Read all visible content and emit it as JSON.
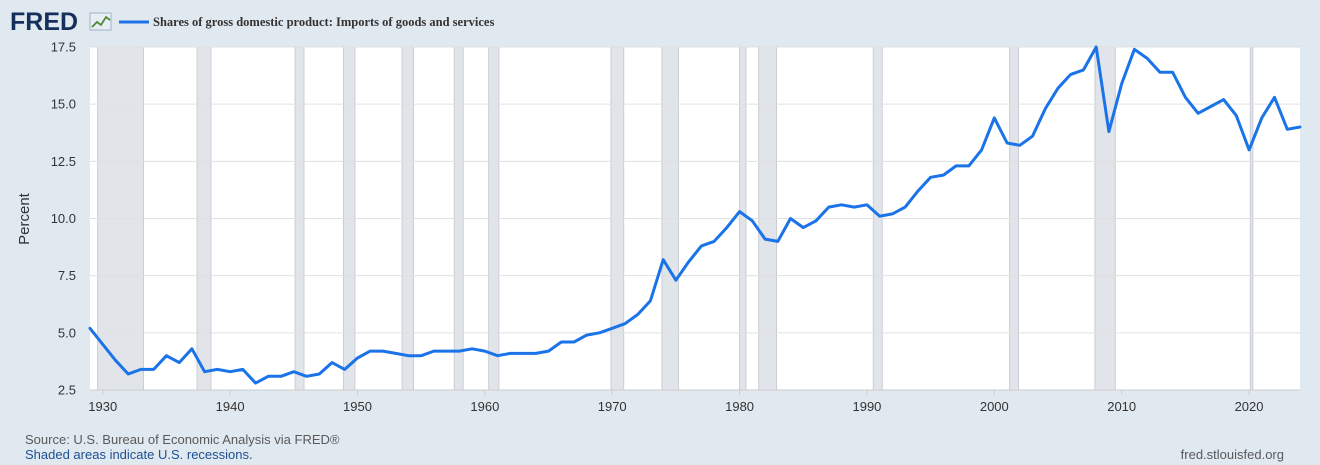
{
  "logo": {
    "text": "FRED",
    "icon": "line-chart-icon"
  },
  "series_color": "#1a73e8",
  "recession_color": "#e1e5ea",
  "footer": {
    "source": "Source: U.S. Bureau of Economic Analysis via FRED®",
    "recession_note": "Shaded areas indicate U.S. recessions.",
    "url": "fred.stlouisfed.org"
  },
  "chart_data": {
    "type": "line",
    "title": "",
    "xlabel": "",
    "ylabel": "Percent",
    "xlim": [
      1929,
      2024
    ],
    "ylim": [
      2.5,
      17.5
    ],
    "x_ticks": [
      1930,
      1940,
      1950,
      1960,
      1970,
      1980,
      1990,
      2000,
      2010,
      2020
    ],
    "y_ticks": [
      {
        "value": 2.5,
        "label": "2.5"
      },
      {
        "value": 5.0,
        "label": "5.0"
      },
      {
        "value": 7.5,
        "label": "7.5"
      },
      {
        "value": 10.0,
        "label": "10.0"
      },
      {
        "value": 12.5,
        "label": "12.5"
      },
      {
        "value": 15.0,
        "label": "15.0"
      },
      {
        "value": 17.5,
        "label": "17.5"
      }
    ],
    "grid": true,
    "legend_position": "top-left",
    "recessions": [
      [
        1929.6,
        1933.2
      ],
      [
        1937.4,
        1938.5
      ],
      [
        1945.1,
        1945.8
      ],
      [
        1948.9,
        1949.8
      ],
      [
        1953.5,
        1954.4
      ],
      [
        1957.6,
        1958.3
      ],
      [
        1960.3,
        1961.1
      ],
      [
        1969.9,
        1970.9
      ],
      [
        1973.9,
        1975.2
      ],
      [
        1980.0,
        1980.5
      ],
      [
        1981.5,
        1982.9
      ],
      [
        1990.5,
        1991.2
      ],
      [
        2001.2,
        2001.9
      ],
      [
        2007.9,
        2009.5
      ],
      [
        2020.1,
        2020.3
      ]
    ],
    "series": [
      {
        "name": "Shares of gross domestic product: Imports of goods and services",
        "x": [
          1929,
          1930,
          1931,
          1932,
          1933,
          1934,
          1935,
          1936,
          1937,
          1938,
          1939,
          1940,
          1941,
          1942,
          1943,
          1944,
          1945,
          1946,
          1947,
          1948,
          1949,
          1950,
          1951,
          1952,
          1953,
          1954,
          1955,
          1956,
          1957,
          1958,
          1959,
          1960,
          1961,
          1962,
          1963,
          1964,
          1965,
          1966,
          1967,
          1968,
          1969,
          1970,
          1971,
          1972,
          1973,
          1974,
          1975,
          1976,
          1977,
          1978,
          1979,
          1980,
          1981,
          1982,
          1983,
          1984,
          1985,
          1986,
          1987,
          1988,
          1989,
          1990,
          1991,
          1992,
          1993,
          1994,
          1995,
          1996,
          1997,
          1998,
          1999,
          2000,
          2001,
          2002,
          2003,
          2004,
          2005,
          2006,
          2007,
          2008,
          2009,
          2010,
          2011,
          2012,
          2013,
          2014,
          2015,
          2016,
          2017,
          2018,
          2019,
          2020,
          2021,
          2022,
          2023,
          2024
        ],
        "y": [
          5.2,
          4.5,
          3.8,
          3.2,
          3.4,
          3.4,
          4.0,
          3.7,
          4.3,
          3.3,
          3.4,
          3.3,
          3.4,
          2.8,
          3.1,
          3.1,
          3.3,
          3.1,
          3.2,
          3.7,
          3.4,
          3.9,
          4.2,
          4.2,
          4.1,
          4.0,
          4.0,
          4.2,
          4.2,
          4.2,
          4.3,
          4.2,
          4.0,
          4.1,
          4.1,
          4.1,
          4.2,
          4.6,
          4.6,
          4.9,
          5.0,
          5.2,
          5.4,
          5.8,
          6.4,
          8.2,
          7.3,
          8.1,
          8.8,
          9.0,
          9.6,
          10.3,
          9.9,
          9.1,
          9.0,
          10.0,
          9.6,
          9.9,
          10.5,
          10.6,
          10.5,
          10.6,
          10.1,
          10.2,
          10.5,
          11.2,
          11.8,
          11.9,
          12.3,
          12.3,
          13.0,
          14.4,
          13.3,
          13.2,
          13.6,
          14.8,
          15.7,
          16.3,
          16.5,
          17.5,
          13.8,
          15.9,
          17.4,
          17.0,
          16.4,
          16.4,
          15.3,
          14.6,
          14.9,
          15.2,
          14.5,
          13.0,
          14.4,
          15.3,
          13.9,
          14.0
        ]
      }
    ]
  }
}
